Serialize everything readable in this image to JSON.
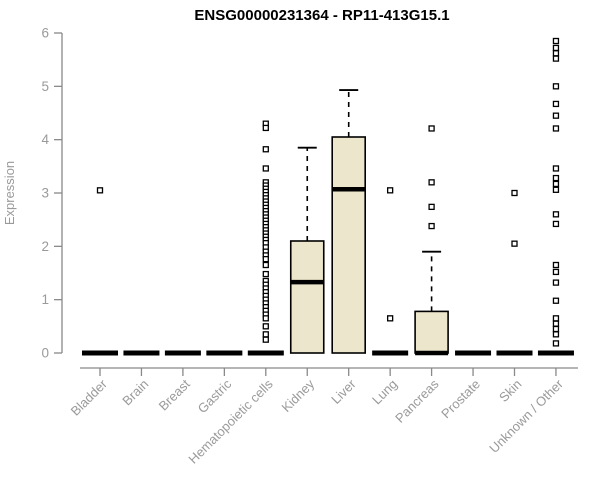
{
  "chart_data": {
    "type": "boxplot",
    "title": "ENSG00000231364 - RP11-413G15.1",
    "xlabel": "",
    "ylabel": "Expression",
    "ylim": [
      0,
      6
    ],
    "yticks": [
      0,
      1,
      2,
      3,
      4,
      5,
      6
    ],
    "grid": false,
    "legend": "none",
    "categories": [
      "Bladder",
      "Brain",
      "Breast",
      "Gastric",
      "Hematopoietic cells",
      "Kidney",
      "Liver",
      "Lung",
      "Pancreas",
      "Prostate",
      "Skin",
      "Unknown / Other"
    ],
    "series": [
      {
        "category": "Bladder",
        "q1": 0,
        "median": 0,
        "q3": 0,
        "whisker_low": 0,
        "whisker_high": 0,
        "outliers": [
          3.05
        ]
      },
      {
        "category": "Brain",
        "q1": 0,
        "median": 0,
        "q3": 0,
        "whisker_low": 0,
        "whisker_high": 0,
        "outliers": []
      },
      {
        "category": "Breast",
        "q1": 0,
        "median": 0,
        "q3": 0,
        "whisker_low": 0,
        "whisker_high": 0,
        "outliers": []
      },
      {
        "category": "Gastric",
        "q1": 0,
        "median": 0,
        "q3": 0,
        "whisker_low": 0,
        "whisker_high": 0,
        "outliers": []
      },
      {
        "category": "Hematopoietic cells",
        "q1": 0,
        "median": 0,
        "q3": 0,
        "whisker_low": 0,
        "whisker_high": 0,
        "outliers": [
          4.3,
          4.22,
          3.82,
          3.46,
          3.2,
          3.14,
          3.08,
          3.02,
          2.96,
          2.9,
          2.84,
          2.78,
          2.72,
          2.66,
          2.6,
          2.54,
          2.48,
          2.42,
          2.36,
          2.3,
          2.24,
          2.18,
          2.12,
          2.06,
          1.98,
          1.9,
          1.83,
          1.76,
          1.65,
          1.48,
          1.35,
          1.28,
          1.21,
          1.14,
          1.07,
          1.0,
          0.93,
          0.86,
          0.79,
          0.72,
          0.65,
          0.5,
          0.35,
          0.25
        ]
      },
      {
        "category": "Kidney",
        "q1": 0,
        "median": 1.33,
        "q3": 2.1,
        "whisker_low": 0,
        "whisker_high": 3.85,
        "outliers": []
      },
      {
        "category": "Liver",
        "q1": 0,
        "median": 3.07,
        "q3": 4.05,
        "whisker_low": 0,
        "whisker_high": 4.93,
        "outliers": []
      },
      {
        "category": "Lung",
        "q1": 0,
        "median": 0,
        "q3": 0,
        "whisker_low": 0,
        "whisker_high": 0,
        "outliers": [
          3.05,
          0.65
        ]
      },
      {
        "category": "Pancreas",
        "q1": 0,
        "median": 0,
        "q3": 0.78,
        "whisker_low": 0,
        "whisker_high": 1.9,
        "outliers": [
          2.38,
          2.74,
          3.2,
          4.21
        ]
      },
      {
        "category": "Prostate",
        "q1": 0,
        "median": 0,
        "q3": 0,
        "whisker_low": 0,
        "whisker_high": 0,
        "outliers": []
      },
      {
        "category": "Skin",
        "q1": 0,
        "median": 0,
        "q3": 0,
        "whisker_low": 0,
        "whisker_high": 0,
        "outliers": [
          3.0,
          2.05
        ]
      },
      {
        "category": "Unknown / Other",
        "q1": 0,
        "median": 0,
        "q3": 0,
        "whisker_low": 0,
        "whisker_high": 0,
        "outliers": [
          5.85,
          5.72,
          5.62,
          5.52,
          5.0,
          4.67,
          4.45,
          4.21,
          3.46,
          3.28,
          3.17,
          3.06,
          2.6,
          2.42,
          1.65,
          1.52,
          1.32,
          0.98,
          0.65,
          0.55,
          0.45,
          0.35,
          0.18
        ]
      }
    ]
  },
  "colors": {
    "box_fill": "#ECE7CC",
    "box_stroke": "#000000",
    "median": "#000000",
    "whisker": "#000000",
    "outlier_fill": "#FFFFFF",
    "outlier_stroke": "#000000",
    "axis_line": "#898989",
    "tick_label": "#9a9a9a",
    "title": "#000000",
    "background": "#FFFFFF"
  }
}
